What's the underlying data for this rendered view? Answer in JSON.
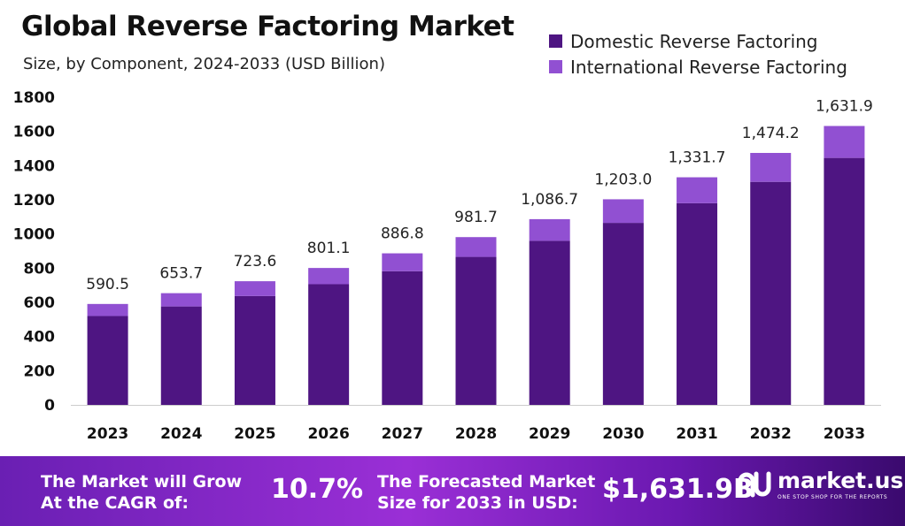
{
  "header": {
    "title": "Global Reverse Factoring Market",
    "subtitle": "Size, by Component, 2024-2033 (USD Billion)"
  },
  "colors": {
    "domestic": "#4e1582",
    "international": "#9150d2",
    "axis": "#cccccc"
  },
  "chart_data": {
    "type": "bar",
    "stacked": true,
    "categories": [
      "2023",
      "2024",
      "2025",
      "2026",
      "2027",
      "2028",
      "2029",
      "2030",
      "2031",
      "2032",
      "2033"
    ],
    "series": [
      {
        "name": "Domestic Reverse Factoring",
        "values": [
          520,
          576,
          637,
          706,
          782,
          866,
          960,
          1065,
          1180,
          1305,
          1445
        ]
      },
      {
        "name": "International Reverse Factoring",
        "values": [
          70.5,
          77.7,
          86.6,
          95.1,
          104.8,
          115.7,
          126.7,
          138.0,
          151.7,
          169.2,
          186.9
        ]
      }
    ],
    "totals": [
      "590.5",
      "653.7",
      "723.6",
      "801.1",
      "886.8",
      "981.7",
      "1,086.7",
      "1,203.0",
      "1,331.7",
      "1,474.2",
      "1,631.9"
    ],
    "yticks": [
      0,
      200,
      400,
      600,
      800,
      1000,
      1200,
      1400,
      1600,
      1800
    ],
    "ylim": [
      0,
      1800
    ],
    "grid": false,
    "legend": "top-right"
  },
  "footer": {
    "cagr_label_line1": "The Market will Grow",
    "cagr_label_line2": "At the CAGR of:",
    "cagr_value": "10.7%",
    "forecast_label_line1": "The Forecasted Market",
    "forecast_label_line2": "Size for 2033 in USD:",
    "forecast_value": "$1,631.9B",
    "brand_name": "market.us",
    "brand_tagline": "ONE STOP SHOP FOR THE REPORTS",
    "brand_icon": "market-us-logo-icon"
  }
}
